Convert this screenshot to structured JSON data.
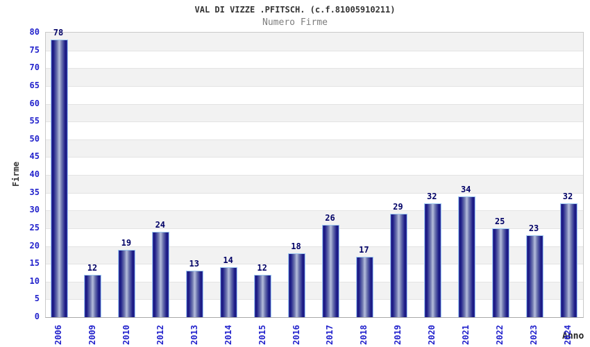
{
  "header": {
    "title": "VAL DI VIZZE .PFITSCH. (c.f.81005910211)",
    "subtitle": "Numero Firme"
  },
  "axes": {
    "ylabel": "Firme",
    "xlabel": "Anno"
  },
  "colors": {
    "tick_label": "#2222cc",
    "value_label": "#000066",
    "bar_dark": "#17177c",
    "bar_light": "#b6bedc",
    "bar_border": "#9ec9ef",
    "band": "#f2f2f2",
    "gridline": "#e3e3e3",
    "title_text": "#333333",
    "subtitle_text": "#7d7d7d"
  },
  "chart_data": {
    "type": "bar",
    "title": "VAL DI VIZZE .PFITSCH. (c.f.81005910211)",
    "subtitle": "Numero Firme",
    "xlabel": "Anno",
    "ylabel": "Firme",
    "categories": [
      "2006",
      "2009",
      "2010",
      "2012",
      "2013",
      "2014",
      "2015",
      "2016",
      "2017",
      "2018",
      "2019",
      "2020",
      "2021",
      "2022",
      "2023",
      "2024"
    ],
    "values": [
      78,
      12,
      19,
      24,
      13,
      14,
      12,
      18,
      26,
      17,
      29,
      32,
      34,
      25,
      23,
      32
    ],
    "ylim": [
      0,
      80
    ],
    "ytick_step": 5,
    "yticks": [
      0,
      5,
      10,
      15,
      20,
      25,
      30,
      35,
      40,
      45,
      50,
      55,
      60,
      65,
      70,
      75,
      80
    ],
    "grid": true,
    "banded_background": true,
    "legend": "none",
    "bar_value_labels": true
  }
}
